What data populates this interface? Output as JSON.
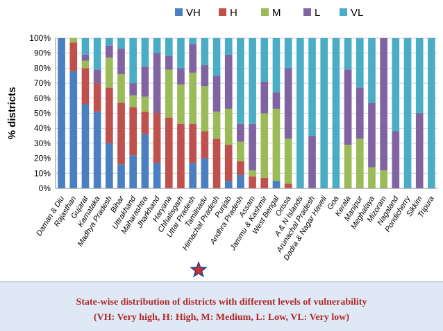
{
  "chart_data": {
    "type": "bar",
    "stacked": true,
    "ylabel": "% districts",
    "xlabel": "",
    "ylim": [
      0,
      100
    ],
    "yticks": [
      "0%",
      "10%",
      "20%",
      "30%",
      "40%",
      "50%",
      "60%",
      "70%",
      "80%",
      "90%",
      "100%"
    ],
    "legend_position": "top",
    "categories": [
      "Daman & Diu",
      "Rajasthan",
      "Gujarat",
      "Karnataka",
      "Madhya Pradesh",
      "Bihar",
      "Uttrakhand",
      "Maharashtra",
      "Jharkhand",
      "Haryana",
      "Chhatisgarh",
      "Uttar Pradesh",
      "Tamilnadu",
      "Himachal Pradesh",
      "Punjab",
      "Andhra Pradesh",
      "Assam",
      "Jammu & Kashmir",
      "West Bengal",
      "Orissa",
      "A & N Islands",
      "Arunachal Pradesh",
      "Dadra & Nagar Haveli",
      "Goa",
      "Kerala",
      "Manipur",
      "Meghalaya",
      "Mizoram",
      "Nagaland",
      "Pondicherry",
      "Sikkim",
      "Tripura"
    ],
    "series": [
      {
        "name": "VH",
        "color": "#4a7fc1",
        "values": [
          100,
          78,
          56,
          51,
          30,
          16,
          22,
          36,
          17,
          0,
          0,
          17,
          20,
          0,
          5,
          9,
          0,
          0,
          5,
          0,
          0,
          0,
          0,
          0,
          0,
          0,
          0,
          0,
          0,
          0,
          0,
          0
        ]
      },
      {
        "name": "H",
        "color": "#c0504d",
        "values": [
          0,
          19,
          24,
          19,
          37,
          41,
          32,
          15,
          33,
          47,
          43,
          26,
          18,
          33,
          24,
          9,
          8,
          7,
          0,
          3,
          0,
          0,
          0,
          0,
          0,
          0,
          0,
          0,
          0,
          0,
          0,
          0
        ]
      },
      {
        "name": "M",
        "color": "#9bbb59",
        "values": [
          0,
          3,
          5,
          0,
          20,
          19,
          8,
          10,
          0,
          32,
          26,
          34,
          30,
          18,
          24,
          13,
          4,
          43,
          48,
          30,
          0,
          0,
          0,
          0,
          29,
          33,
          14,
          12,
          0,
          0,
          0,
          0
        ]
      },
      {
        "name": "L",
        "color": "#8064a2",
        "values": [
          0,
          0,
          4,
          9,
          8,
          17,
          8,
          20,
          40,
          9,
          11,
          19,
          14,
          24,
          36,
          12,
          31,
          21,
          11,
          47,
          0,
          35,
          0,
          0,
          50,
          34,
          43,
          88,
          38,
          0,
          50,
          0
        ]
      },
      {
        "name": "VL",
        "color": "#4bacc6",
        "values": [
          0,
          0,
          11,
          21,
          5,
          7,
          30,
          19,
          10,
          12,
          20,
          4,
          18,
          25,
          11,
          57,
          57,
          29,
          36,
          20,
          100,
          65,
          100,
          100,
          21,
          33,
          43,
          0,
          62,
          100,
          50,
          100
        ]
      }
    ]
  },
  "caption": {
    "line1": "State-wise distribution of districts with different levels of vulnerability",
    "line2": "(VH: Very high, H: High, M: Medium, L: Low, VL: Very low)"
  },
  "colors": {
    "star_fill": "#d32f2f",
    "star_stroke": "#1f3a8a"
  }
}
